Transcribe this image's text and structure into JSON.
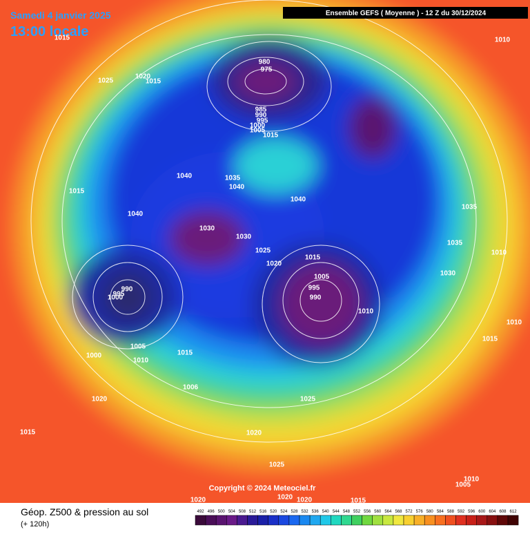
{
  "header": {
    "date": "Samedi 4 janvier 2025",
    "time": "13:00 locale",
    "model": "Ensemble GEFS  ( Moyenne )  -  12 Z du 30/12/2024"
  },
  "footer": {
    "title": "Géop. Z500 & pression au sol",
    "lead": "(+ 120h)",
    "copyright": "Copyright © 2024 Meteociel.fr"
  },
  "legend": {
    "ticks": [
      492,
      496,
      500,
      504,
      508,
      512,
      516,
      520,
      524,
      528,
      532,
      536,
      540,
      544,
      548,
      552,
      556,
      560,
      564,
      568,
      572,
      576,
      580,
      584,
      588,
      592,
      596,
      600,
      604,
      608,
      612
    ]
  },
  "isobar_labels": [
    "1015",
    "1025",
    "1020",
    "1015",
    "980",
    "975",
    "985",
    "990",
    "995",
    "1000",
    "1005",
    "1015",
    "1010",
    "1040",
    "1035",
    "1040",
    "1040",
    "1015",
    "1040",
    "1030",
    "1030",
    "1025",
    "1020",
    "1015",
    "1035",
    "1035",
    "1010",
    "1030",
    "1005",
    "995",
    "990",
    "1010",
    "990",
    "995",
    "1000",
    "1010",
    "1015",
    "1005",
    "1000",
    "1010",
    "1015",
    "1006",
    "1020",
    "1025",
    "1015",
    "1020",
    "1025",
    "1010",
    "1005",
    "1020",
    "1020",
    "1020",
    "1015"
  ]
}
